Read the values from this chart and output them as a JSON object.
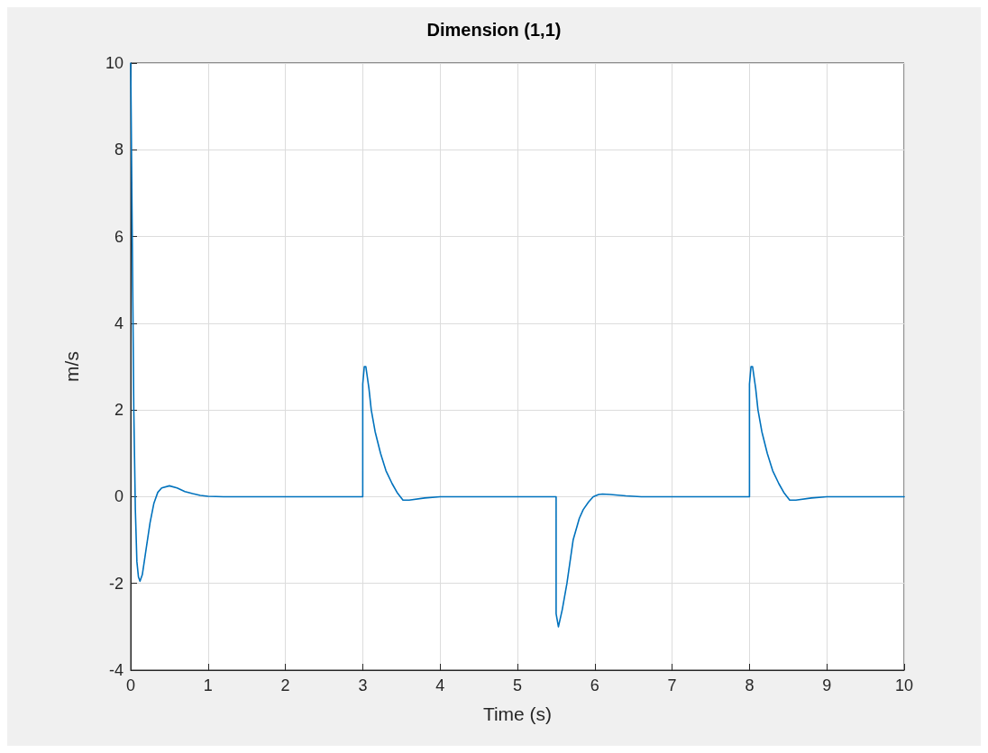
{
  "chart_data": {
    "type": "line",
    "title": "Dimension (1,1)",
    "xlabel": "Time (s)",
    "ylabel": "m/s",
    "xlim": [
      0,
      10
    ],
    "ylim": [
      -4,
      10
    ],
    "xticks": [
      0,
      1,
      2,
      3,
      4,
      5,
      6,
      7,
      8,
      9,
      10
    ],
    "yticks": [
      -4,
      -2,
      0,
      2,
      4,
      6,
      8,
      10
    ],
    "grid": true,
    "marker": "none",
    "line_style": "solid",
    "series": [
      {
        "color": "#0072bd",
        "x": [
          0,
          0.02,
          0.04,
          0.06,
          0.08,
          0.1,
          0.12,
          0.15,
          0.2,
          0.25,
          0.3,
          0.35,
          0.4,
          0.5,
          0.6,
          0.7,
          0.8,
          0.9,
          1.0,
          1.2,
          1.5,
          2,
          2.5,
          3.0,
          3.0,
          3.02,
          3.04,
          3.08,
          3.11,
          3.16,
          3.23,
          3.3,
          3.38,
          3.45,
          3.52,
          3.6,
          3.8,
          4.0,
          4.5,
          5,
          5.5,
          5.5,
          5.53,
          5.58,
          5.64,
          5.72,
          5.8,
          5.85,
          5.92,
          5.98,
          6.05,
          6.1,
          6.2,
          6.4,
          6.6,
          7,
          7.5,
          8.0,
          8.0,
          8.02,
          8.04,
          8.08,
          8.11,
          8.16,
          8.23,
          8.3,
          8.38,
          8.45,
          8.52,
          8.6,
          8.8,
          9.0,
          9.5,
          10
        ],
        "values": [
          10,
          6,
          2,
          -0.3,
          -1.5,
          -1.85,
          -1.95,
          -1.8,
          -1.2,
          -0.6,
          -0.15,
          0.1,
          0.2,
          0.25,
          0.2,
          0.12,
          0.07,
          0.03,
          0.01,
          0,
          0,
          0,
          0,
          0,
          2.6,
          3.0,
          3.0,
          2.5,
          2.0,
          1.5,
          1.0,
          0.6,
          0.3,
          0.08,
          -0.08,
          -0.08,
          -0.03,
          0,
          0,
          0,
          0,
          -2.7,
          -3.0,
          -2.6,
          -2.0,
          -1.0,
          -0.5,
          -0.3,
          -0.12,
          0,
          0.05,
          0.06,
          0.05,
          0.02,
          0,
          0,
          0,
          0,
          2.6,
          3.0,
          3.0,
          2.5,
          2.0,
          1.5,
          1.0,
          0.6,
          0.3,
          0.08,
          -0.08,
          -0.08,
          -0.03,
          0,
          0,
          0
        ]
      }
    ]
  }
}
